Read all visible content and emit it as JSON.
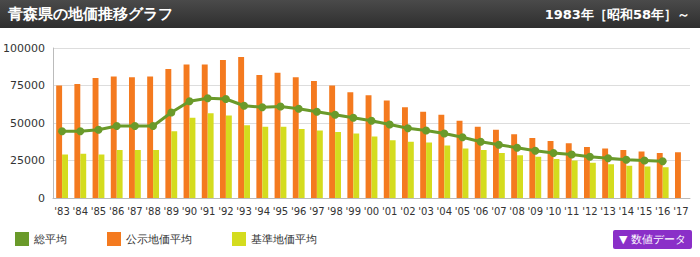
{
  "chart_data": {
    "type": "bar",
    "title": "青森県の地価推移グラフ",
    "subtitle": "1983年［昭和58年］～",
    "annotations": [
      "▼ 数値データ"
    ],
    "categories": [
      "'83",
      "'84",
      "'85",
      "'86",
      "'87",
      "'88",
      "'89",
      "'90",
      "'91",
      "'92",
      "'93",
      "'94",
      "'95",
      "'96",
      "'97",
      "'98",
      "'99",
      "'00",
      "'01",
      "'02",
      "'03",
      "'04",
      "'05",
      "'06",
      "'07",
      "'08",
      "'09",
      "'10",
      "'11",
      "'12",
      "'13",
      "'14",
      "'15",
      "'16",
      "'17"
    ],
    "series": [
      {
        "name": "総平均",
        "type": "line",
        "marker": "circle",
        "color": "#6a9a2a",
        "values": [
          44500,
          44500,
          45500,
          48000,
          48000,
          48000,
          57000,
          64500,
          66500,
          66000,
          61500,
          60500,
          61000,
          59500,
          57500,
          55500,
          53500,
          51500,
          49000,
          46500,
          45000,
          43000,
          40500,
          37500,
          35500,
          33500,
          31500,
          30000,
          29000,
          27500,
          26500,
          25500,
          25000,
          24500,
          null
        ]
      },
      {
        "name": "公示地価平均",
        "type": "bar",
        "color": "#f47a1f",
        "values": [
          75000,
          76000,
          80000,
          81000,
          80500,
          81000,
          86000,
          89000,
          89000,
          92000,
          94000,
          82000,
          83500,
          80500,
          78000,
          75000,
          70500,
          68500,
          65000,
          60500,
          57500,
          55500,
          51500,
          47500,
          45500,
          42500,
          40000,
          38000,
          36500,
          34000,
          33000,
          32000,
          31000,
          30000,
          30500
        ]
      },
      {
        "name": "基準地価平均",
        "type": "bar",
        "color": "#d4dc1e",
        "values": [
          29000,
          29500,
          29000,
          32000,
          32000,
          32000,
          44500,
          53500,
          56500,
          55000,
          48500,
          47500,
          47500,
          46000,
          45000,
          44000,
          43000,
          41000,
          38500,
          37500,
          37000,
          35000,
          33000,
          32000,
          30000,
          28500,
          27500,
          26000,
          25000,
          23500,
          22500,
          21500,
          21000,
          20500,
          null
        ]
      }
    ],
    "ylim": [
      0,
      100000
    ],
    "yticks": [
      0,
      25000,
      50000,
      75000,
      100000
    ],
    "grid": true,
    "legend": "bottom-left"
  }
}
